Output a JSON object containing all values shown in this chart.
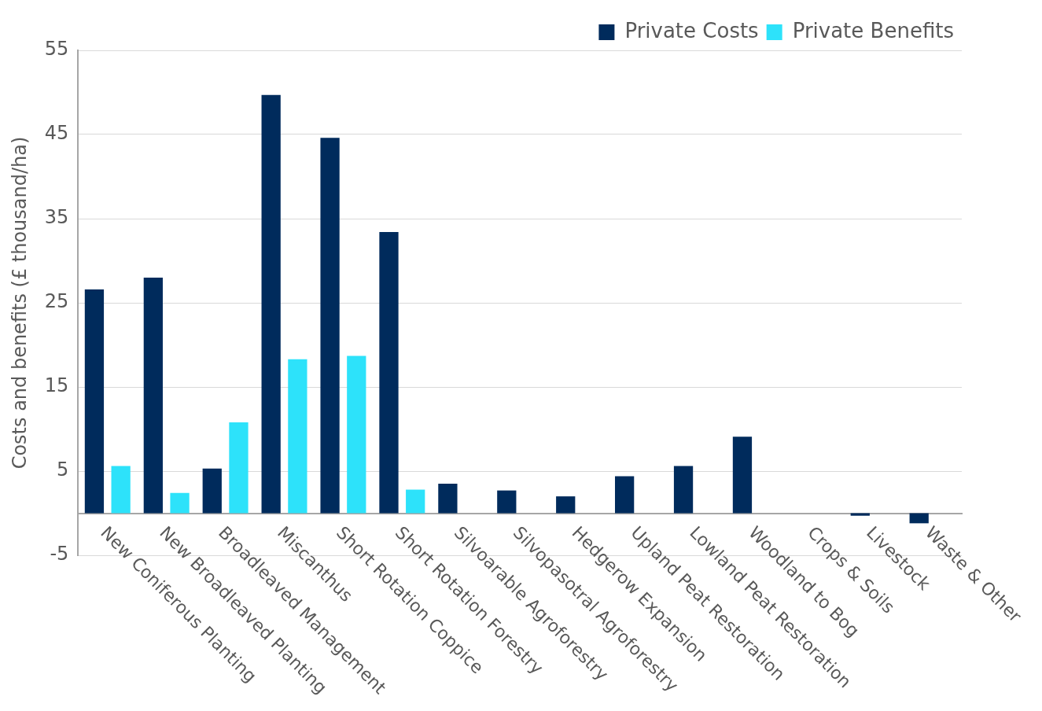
{
  "chart_data": {
    "type": "bar",
    "ylabel": "Costs and benefits (£ thousand/ha)",
    "categories": [
      "New Coniferous Planting",
      "New Broadleaved Planting",
      "Broadleaved Management",
      "Miscanthus",
      "Short Rotation Coppice",
      "Short Rotation Forestry",
      "Silvoarable Agroforestry",
      "Silvopasotral Agroforestry",
      "Hedgerow Expansion",
      "Upland Peat Restoration",
      "Lowland Peat Restoration",
      "Woodland to Bog",
      "Crops & Soils",
      "Livestock",
      "Waste & Other"
    ],
    "series": [
      {
        "name": "Private Costs",
        "color": "#002b5c",
        "values": [
          26.6,
          28.0,
          5.3,
          49.7,
          44.6,
          33.4,
          3.5,
          2.7,
          2.0,
          4.4,
          5.6,
          9.1,
          null,
          -0.3,
          -1.2
        ]
      },
      {
        "name": "Private Benefits",
        "color": "#2de2fa",
        "values": [
          5.6,
          2.4,
          10.8,
          18.3,
          18.7,
          2.8,
          null,
          null,
          null,
          null,
          null,
          null,
          null,
          null,
          null
        ]
      }
    ],
    "ylim": [
      -5,
      55
    ],
    "yticks": [
      -5,
      5,
      15,
      25,
      35,
      45,
      55
    ],
    "grid": "y",
    "legend": "top right"
  }
}
